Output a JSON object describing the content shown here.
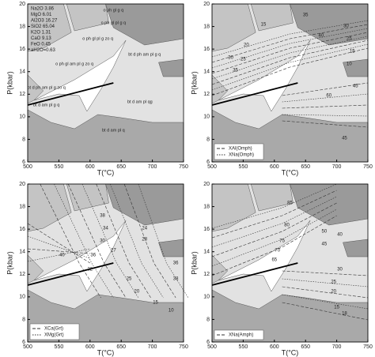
{
  "chart_data": [
    {
      "type": "pseudosection",
      "xlabel": "T(°C)",
      "ylabel": "P(kbar)",
      "xlim": [
        500,
        750
      ],
      "ylim": [
        6,
        20
      ],
      "xticks": [
        500,
        550,
        600,
        650,
        700,
        750
      ],
      "yticks": [
        6,
        8,
        10,
        12,
        14,
        16,
        18,
        20
      ],
      "composition": [
        "Na2O  3.86",
        "MgO  6.01",
        "Al2O3  16.27",
        "SiO2  65.04",
        "K2O  1.31",
        "CaO  9.13",
        "FeO  0.45",
        "aH2O=0.63"
      ],
      "field_labels": [
        "o ph gl g q",
        "o ph gl pl g q",
        "o ph gl pl g zo q",
        "o ph gl am pl g zo q",
        "bt d ph am pl g q",
        "bt d ph am pl g zo q",
        "bt d am pl g q",
        "bt d am pl qg",
        "bt d am pl q"
      ],
      "contour_labels": [],
      "legend": []
    },
    {
      "type": "pseudosection",
      "xlabel": "T(°C)",
      "ylabel": "P(kbar)",
      "xlim": [
        500,
        750
      ],
      "ylim": [
        6,
        20
      ],
      "xticks": [
        500,
        550,
        600,
        650,
        700,
        750
      ],
      "yticks": [
        6,
        8,
        10,
        12,
        14,
        16,
        18,
        20
      ],
      "composition": [],
      "field_labels": [],
      "contour_labels": [
        15,
        20,
        25,
        30,
        35,
        40,
        45,
        10,
        15,
        25,
        30,
        35,
        60,
        45
      ],
      "legend": [
        "XAl(Omph)",
        "XNa(Omph)"
      ]
    },
    {
      "type": "pseudosection",
      "xlabel": "T(°C)",
      "ylabel": "P(kbar)",
      "xlim": [
        500,
        750
      ],
      "ylim": [
        6,
        20
      ],
      "xticks": [
        500,
        550,
        600,
        650,
        700,
        750
      ],
      "yticks": [
        6,
        8,
        10,
        12,
        14,
        16,
        18,
        20
      ],
      "composition": [],
      "field_labels": [],
      "contour_labels": [
        38,
        34,
        30,
        36,
        32,
        24,
        28,
        40,
        27,
        25,
        20,
        15,
        10,
        36,
        38
      ],
      "legend": [
        "XCa(Grt)",
        "XMg(Grt)"
      ]
    },
    {
      "type": "pseudosection",
      "xlabel": "T(°C)",
      "ylabel": "P(kbar)",
      "xlim": [
        500,
        750
      ],
      "ylim": [
        6,
        20
      ],
      "xticks": [
        500,
        550,
        600,
        650,
        700,
        750
      ],
      "yticks": [
        6,
        8,
        10,
        12,
        14,
        16,
        18,
        20
      ],
      "composition": [],
      "field_labels": [],
      "contour_labels": [
        85,
        80,
        75,
        70,
        65,
        50,
        45,
        40,
        30,
        25,
        20,
        15,
        18
      ],
      "legend": [
        "XNa(Amph)"
      ]
    }
  ]
}
